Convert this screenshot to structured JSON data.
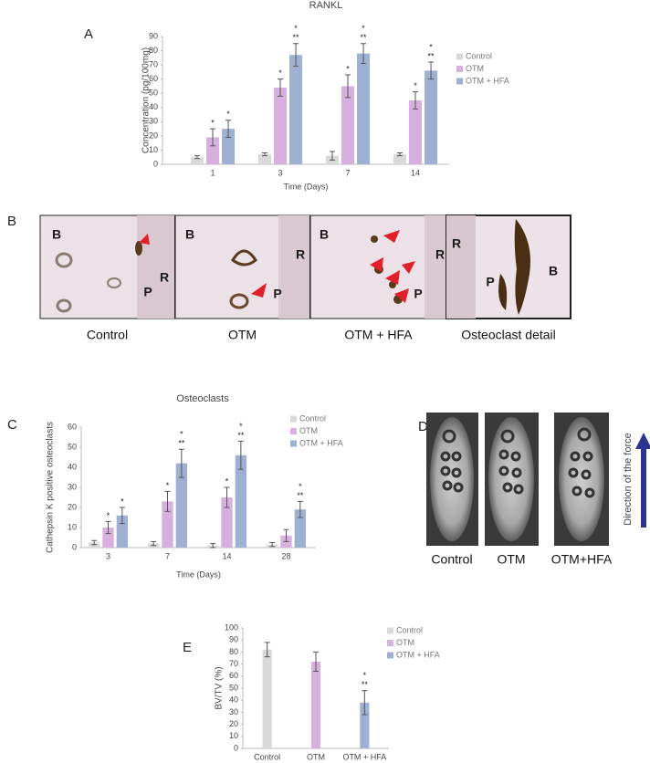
{
  "chart_data": [
    {
      "type": "bar",
      "panel": "A",
      "title": "RANKL",
      "y_label": "Concentration (pg/100mg)",
      "x_label": "Time (Days)",
      "categories": [
        "1",
        "3",
        "7",
        "14"
      ],
      "ylim": [
        0,
        90
      ],
      "yticks": [
        0,
        10,
        20,
        30,
        40,
        50,
        60,
        70,
        80,
        90
      ],
      "series": [
        {
          "name": "Control",
          "color": "#d9d9d9",
          "values": [
            5,
            7,
            6,
            7
          ],
          "errors": [
            1,
            1,
            3,
            1
          ],
          "significance": [
            [],
            [],
            [],
            []
          ]
        },
        {
          "name": "OTM",
          "color": "#d8b0e0",
          "values": [
            19,
            54,
            55,
            45
          ],
          "errors": [
            6,
            6,
            8,
            6
          ],
          "significance": [
            [
              "*"
            ],
            [
              "*"
            ],
            [
              "*"
            ],
            [
              "*"
            ]
          ]
        },
        {
          "name": "OTM + HFA",
          "color": "#9fb1d2",
          "values": [
            25,
            77,
            78,
            66
          ],
          "errors": [
            6,
            8,
            7,
            6
          ],
          "significance": [
            [
              "*"
            ],
            [
              "*",
              "**"
            ],
            [
              "*",
              "**"
            ],
            [
              "*",
              "**"
            ]
          ]
        }
      ]
    },
    {
      "type": "bar",
      "panel": "C",
      "title": "Osteoclasts",
      "y_label": "Cathepsin K positive osteoclasts",
      "x_label": "Time (Days)",
      "categories": [
        "3",
        "7",
        "14",
        "28"
      ],
      "ylim": [
        0,
        60
      ],
      "yticks": [
        0,
        10,
        20,
        30,
        40,
        50,
        60
      ],
      "series": [
        {
          "name": "Control",
          "color": "#d9d9d9",
          "values": [
            2.5,
            2,
            1,
            1.5
          ],
          "errors": [
            1,
            1,
            1,
            1
          ],
          "significance": [
            [],
            [],
            [],
            []
          ]
        },
        {
          "name": "OTM",
          "color": "#d8b0e0",
          "values": [
            10,
            23,
            25,
            6
          ],
          "errors": [
            3,
            5,
            5,
            3
          ],
          "significance": [
            [
              "*"
            ],
            [
              "*"
            ],
            [
              "*"
            ],
            []
          ]
        },
        {
          "name": "OTM + HFA",
          "color": "#9fb1d2",
          "values": [
            16,
            42,
            46,
            19
          ],
          "errors": [
            4,
            7,
            7,
            4
          ],
          "significance": [
            [
              "*"
            ],
            [
              "*",
              "**"
            ],
            [
              "*",
              "**"
            ],
            [
              "*",
              "**"
            ]
          ]
        }
      ]
    },
    {
      "type": "bar",
      "panel": "E",
      "y_label": "BV/TV (%)",
      "categories": [
        "Control",
        "OTM",
        "OTM + HFA"
      ],
      "ylim": [
        0,
        100
      ],
      "yticks": [
        0,
        10,
        20,
        30,
        40,
        50,
        60,
        70,
        80,
        90,
        100
      ],
      "series": [
        {
          "name": "Control",
          "color": "#d9d9d9",
          "values": [
            82,
            null,
            null
          ],
          "errors": [
            6,
            null,
            null
          ],
          "significance": [
            [],
            [],
            []
          ]
        },
        {
          "name": "OTM",
          "color": "#d8b0e0",
          "values": [
            null,
            72,
            null
          ],
          "errors": [
            null,
            8,
            null
          ],
          "significance": [
            [],
            [],
            []
          ]
        },
        {
          "name": "OTM + HFA",
          "color": "#9fb1d2",
          "values": [
            null,
            null,
            38
          ],
          "errors": [
            null,
            null,
            10
          ],
          "significance": [
            [],
            [],
            [
              "*",
              "**"
            ]
          ]
        }
      ]
    }
  ],
  "histology": {
    "panel": "B",
    "images": [
      {
        "caption": "Control",
        "labels": [
          "B",
          "R",
          "P"
        ]
      },
      {
        "caption": "OTM",
        "labels": [
          "B",
          "R",
          "P"
        ]
      },
      {
        "caption": "OTM + HFA",
        "labels": [
          "B",
          "R",
          "P"
        ]
      },
      {
        "caption": "Osteoclast detail",
        "labels": [
          "R",
          "P",
          "B"
        ]
      }
    ]
  },
  "micro_ct": {
    "panel": "D",
    "captions": [
      "Control",
      "OTM",
      "OTM+HFA"
    ],
    "arrow_label": "Direction of the force"
  }
}
